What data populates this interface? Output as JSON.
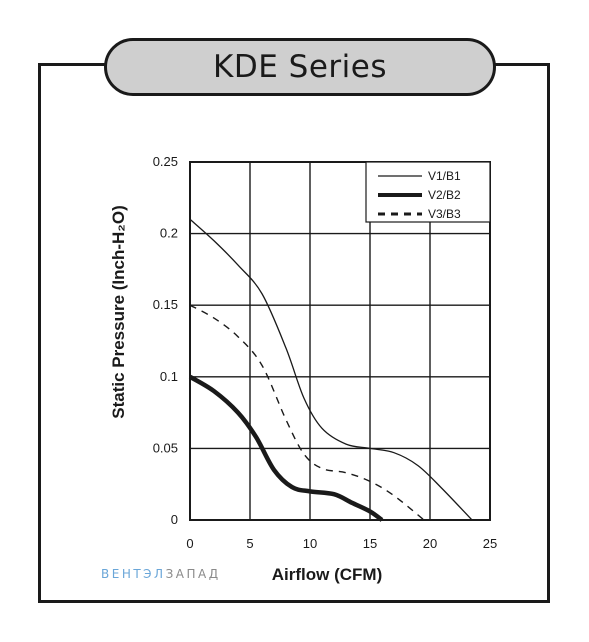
{
  "header": {
    "title": "KDE Series"
  },
  "watermark": {
    "part1": "ВЕНТЭЛ",
    "part2": "ЗАПАД"
  },
  "colors": {
    "line": "#1a1a1a",
    "tab_fill": "#cfcfcf",
    "watermark_blue": "#6aa6d8",
    "watermark_gray": "#8a8a8a"
  },
  "chart_data": {
    "type": "line",
    "xlabel": "Airflow (CFM)",
    "ylabel": "Static Pressure (Inch-H₂O)",
    "xlim": [
      0,
      25
    ],
    "ylim": [
      0,
      0.25
    ],
    "xticks": [
      0,
      5,
      10,
      15,
      20,
      25
    ],
    "xtick_labels": [
      "0",
      "5",
      "10",
      "15",
      "20",
      "25"
    ],
    "yticks": [
      0,
      0.05,
      0.1,
      0.15,
      0.2,
      0.25
    ],
    "ytick_labels": [
      "0",
      "0.05",
      "0.1",
      "0.15",
      "0.2",
      "0.25"
    ],
    "grid": true,
    "legend_position": "top-right",
    "series": [
      {
        "name": "V1/B1",
        "style": "thin",
        "points": [
          [
            0,
            0.21
          ],
          [
            2,
            0.195
          ],
          [
            4,
            0.178
          ],
          [
            6,
            0.158
          ],
          [
            8,
            0.12
          ],
          [
            9.5,
            0.085
          ],
          [
            11,
            0.064
          ],
          [
            13,
            0.053
          ],
          [
            15,
            0.05
          ],
          [
            17,
            0.047
          ],
          [
            19,
            0.038
          ],
          [
            21,
            0.022
          ],
          [
            23.5,
            0
          ]
        ]
      },
      {
        "name": "V2/B2",
        "style": "thick",
        "points": [
          [
            0,
            0.1
          ],
          [
            2,
            0.09
          ],
          [
            4,
            0.075
          ],
          [
            5.5,
            0.058
          ],
          [
            7,
            0.035
          ],
          [
            8.5,
            0.023
          ],
          [
            10,
            0.02
          ],
          [
            12,
            0.018
          ],
          [
            13.5,
            0.012
          ],
          [
            15,
            0.006
          ],
          [
            16,
            0
          ]
        ]
      },
      {
        "name": "V3/B3",
        "style": "dashed",
        "points": [
          [
            0,
            0.15
          ],
          [
            2,
            0.141
          ],
          [
            4,
            0.128
          ],
          [
            6,
            0.108
          ],
          [
            8,
            0.07
          ],
          [
            9.5,
            0.046
          ],
          [
            11,
            0.036
          ],
          [
            13,
            0.033
          ],
          [
            15,
            0.027
          ],
          [
            17,
            0.017
          ],
          [
            19.5,
            0
          ]
        ]
      }
    ]
  }
}
